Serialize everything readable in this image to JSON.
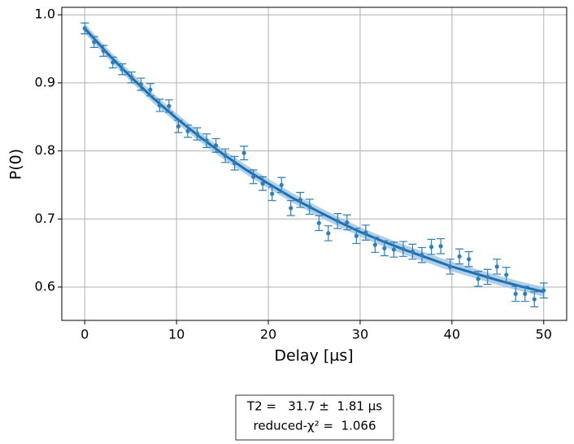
{
  "chart_data": {
    "type": "scatter",
    "xlabel": "Delay [µs]",
    "ylabel": "P(0)",
    "x": [
      0,
      1.02,
      2.04,
      3.06,
      4.08,
      5.1,
      6.12,
      7.14,
      8.16,
      9.18,
      10.2,
      11.22,
      12.24,
      13.27,
      14.29,
      15.31,
      16.33,
      17.35,
      18.37,
      19.39,
      20.41,
      21.43,
      22.45,
      23.47,
      24.49,
      25.51,
      26.53,
      27.55,
      28.57,
      29.59,
      30.61,
      31.63,
      32.65,
      33.67,
      34.69,
      35.71,
      36.73,
      37.76,
      38.78,
      39.8,
      40.82,
      41.84,
      42.86,
      43.88,
      44.9,
      45.92,
      46.94,
      47.96,
      48.98,
      50
    ],
    "values": [
      0.98,
      0.96,
      0.947,
      0.93,
      0.92,
      0.908,
      0.898,
      0.89,
      0.867,
      0.866,
      0.836,
      0.829,
      0.825,
      0.815,
      0.808,
      0.793,
      0.782,
      0.797,
      0.762,
      0.752,
      0.737,
      0.75,
      0.716,
      0.728,
      0.718,
      0.694,
      0.679,
      0.697,
      0.695,
      0.675,
      0.68,
      0.662,
      0.657,
      0.655,
      0.656,
      0.652,
      0.647,
      0.659,
      0.66,
      0.63,
      0.645,
      0.641,
      0.612,
      0.615,
      0.63,
      0.618,
      0.59,
      0.59,
      0.582,
      0.595
    ],
    "errors": [
      0.008,
      0.008,
      0.008,
      0.008,
      0.008,
      0.008,
      0.009,
      0.009,
      0.009,
      0.009,
      0.009,
      0.009,
      0.009,
      0.01,
      0.01,
      0.01,
      0.01,
      0.01,
      0.01,
      0.01,
      0.01,
      0.011,
      0.011,
      0.011,
      0.011,
      0.011,
      0.011,
      0.011,
      0.011,
      0.011,
      0.011,
      0.011,
      0.011,
      0.011,
      0.011,
      0.011,
      0.011,
      0.011,
      0.011,
      0.011,
      0.011,
      0.011,
      0.011,
      0.011,
      0.011,
      0.011,
      0.011,
      0.011,
      0.011,
      0.011
    ],
    "color": "#2f7fb5",
    "fit_x": [
      0,
      2.5,
      5,
      7.5,
      10,
      12.5,
      15,
      17.5,
      20,
      22.5,
      25,
      27.5,
      30,
      32.5,
      35,
      37.5,
      40,
      42.5,
      45,
      47.5,
      50
    ],
    "fit_values": [
      0.98,
      0.943,
      0.909,
      0.877,
      0.848,
      0.821,
      0.796,
      0.773,
      0.752,
      0.732,
      0.714,
      0.697,
      0.681,
      0.667,
      0.654,
      0.642,
      0.63,
      0.62,
      0.61,
      0.601,
      0.593
    ],
    "fit_band": 0.007,
    "fit_color": "#1f6fb0",
    "band_color": "#9cc3e4",
    "xlim": [
      -2.5,
      52.5
    ],
    "ylim": [
      0.551,
      1.011
    ],
    "xticks": [
      0,
      10,
      20,
      30,
      40,
      50
    ],
    "yticks": [
      0.6,
      0.7,
      0.8,
      0.9,
      {
        "value": 1,
        "label": "1.0"
      }
    ],
    "grid": true,
    "annotations": [
      "T2 =   31.7 ±  1.81 µs",
      "reduced-χ² =  1.066"
    ]
  }
}
